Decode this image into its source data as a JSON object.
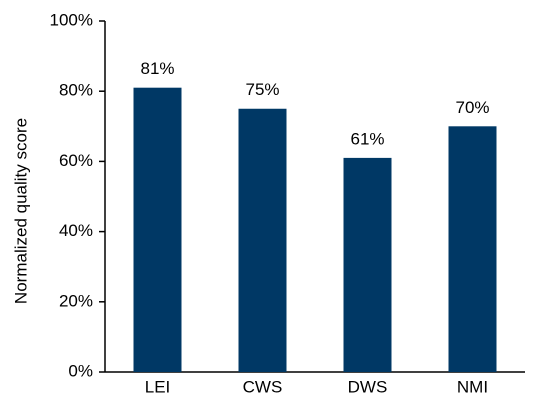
{
  "chart_data": {
    "type": "bar",
    "categories": [
      "LEI",
      "CWS",
      "DWS",
      "NMI"
    ],
    "values": [
      81,
      75,
      61,
      70
    ],
    "data_labels": [
      "81%",
      "75%",
      "61%",
      "70%"
    ],
    "ylabel": "Normalized quality score",
    "ylim": [
      0,
      100
    ],
    "yticks": [
      0,
      20,
      40,
      60,
      80,
      100
    ],
    "ytick_labels": [
      "0%",
      "20%",
      "40%",
      "60%",
      "80%",
      "100%"
    ],
    "grid": false,
    "bar_color": "#003865",
    "axis_color": "#000000"
  }
}
